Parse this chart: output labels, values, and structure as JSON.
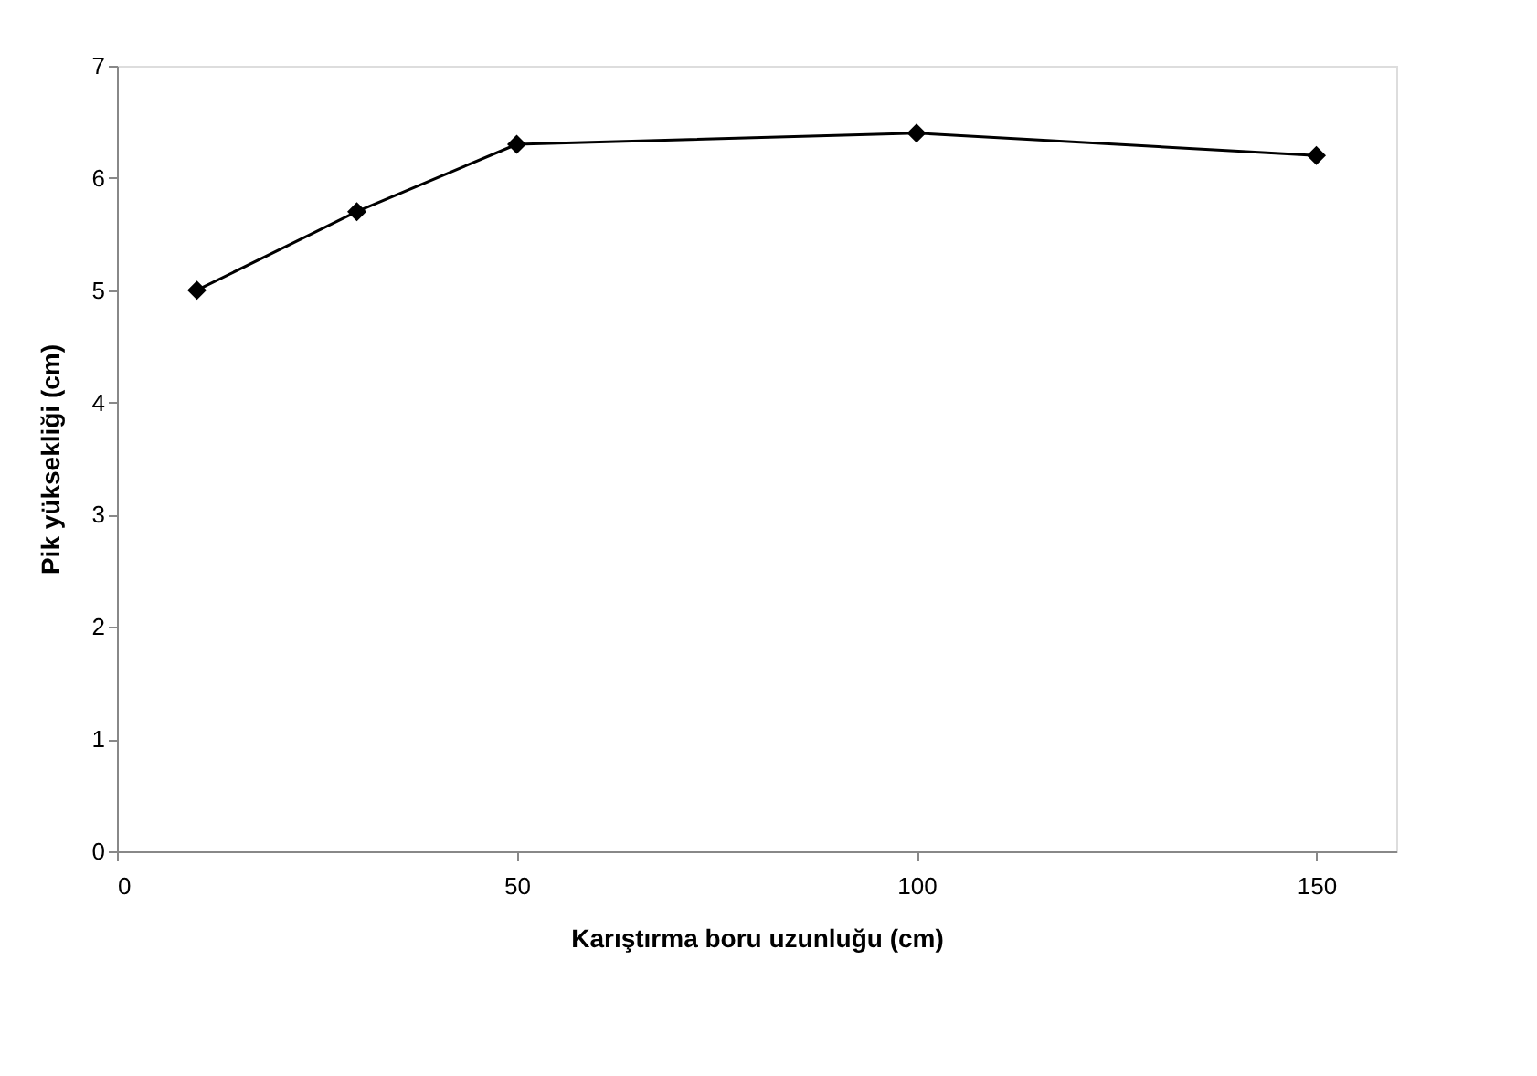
{
  "chart_data": {
    "type": "line",
    "xlabel": "Karıştırma boru uzunluğu (cm)",
    "ylabel": "Pik yüksekliği (cm)",
    "x": [
      10,
      30,
      50,
      100,
      150
    ],
    "series": [
      {
        "color": "#000000",
        "values": [
          5.0,
          5.7,
          6.3,
          6.4,
          6.2
        ]
      }
    ],
    "xlim": [
      0,
      160
    ],
    "xticks": [
      0,
      50,
      100,
      150
    ],
    "ylim": [
      0,
      7
    ],
    "yticks": [
      0,
      1,
      2,
      3,
      4,
      5,
      6,
      7
    ],
    "grid": false,
    "legend": false,
    "marker": "diamond",
    "line_style": "solid"
  }
}
